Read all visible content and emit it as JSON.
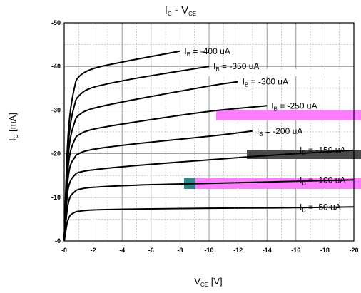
{
  "chart_data": {
    "type": "line",
    "title": {
      "main": "I",
      "sub1": "C",
      "mid": " - V",
      "sub2": "CE"
    },
    "xlabel": {
      "main": "V",
      "sub": "CE",
      "rest": " [V]"
    },
    "ylabel": {
      "main": "I",
      "sub": "C",
      "rest": " [mA]"
    },
    "x_ticks": [
      "-0",
      "-2",
      "-4",
      "-6",
      "-8",
      "-10",
      "-12",
      "-14",
      "-16",
      "-18",
      "-20"
    ],
    "y_ticks": [
      "-0",
      "-10",
      "-20",
      "-30",
      "-40",
      "-50"
    ],
    "xlim": [
      0,
      -20
    ],
    "ylim": [
      0,
      -50
    ],
    "grid": true,
    "series": [
      {
        "label_main": "I",
        "label_sub": "B",
        "label_rest": " = -50 uA",
        "x": [
          0,
          -0.2,
          -0.4,
          -0.7,
          -1,
          -2,
          -5,
          -10,
          -15,
          -20
        ],
        "y": [
          0,
          -4,
          -5.8,
          -6.5,
          -6.8,
          -7.1,
          -7.3,
          -7.5,
          -7.6,
          -7.8
        ]
      },
      {
        "label_main": "I",
        "label_sub": "B",
        "label_rest": " = -100 uA",
        "x": [
          0,
          -0.2,
          -0.4,
          -0.7,
          -1,
          -2,
          -5,
          -10,
          -15,
          -20
        ],
        "y": [
          0,
          -7,
          -10,
          -11.2,
          -11.8,
          -12.3,
          -12.8,
          -13.2,
          -13.6,
          -14
        ]
      },
      {
        "label_main": "I",
        "label_sub": "B",
        "label_rest": " = -150 uA",
        "x": [
          0,
          -0.2,
          -0.4,
          -0.7,
          -1,
          -2,
          -5,
          -10,
          -15,
          -20
        ],
        "y": [
          0,
          -10,
          -13.5,
          -15,
          -15.7,
          -16.3,
          -17.3,
          -18.6,
          -19.8,
          -20.8
        ]
      },
      {
        "label_main": "I",
        "label_sub": "B",
        "label_rest": " = -200 uA",
        "x": [
          0,
          -0.2,
          -0.4,
          -0.7,
          -1,
          -2,
          -5,
          -10,
          -13
        ],
        "y": [
          0,
          -12,
          -17,
          -19,
          -20,
          -21,
          -22.3,
          -24,
          -25.2
        ]
      },
      {
        "label_main": "I",
        "label_sub": "B",
        "label_rest": " = -250 uA",
        "x": [
          0,
          -0.2,
          -0.4,
          -0.7,
          -1,
          -2,
          -5,
          -10,
          -14
        ],
        "y": [
          0,
          -14,
          -20,
          -23,
          -24.3,
          -25.6,
          -27.3,
          -29.7,
          -31
        ]
      },
      {
        "label_main": "I",
        "label_sub": "B",
        "label_rest": " = -300 uA",
        "x": [
          0,
          -0.2,
          -0.4,
          -0.7,
          -1,
          -2,
          -5,
          -10,
          -12
        ],
        "y": [
          0,
          -16,
          -23,
          -27,
          -28.8,
          -30.4,
          -32.5,
          -35.5,
          -36.5
        ]
      },
      {
        "label_main": "I",
        "label_sub": "B",
        "label_rest": " = -350 uA",
        "x": [
          0,
          -0.2,
          -0.4,
          -0.7,
          -1,
          -2,
          -5,
          -10
        ],
        "y": [
          0,
          -18,
          -26,
          -31,
          -33.2,
          -35.2,
          -37.3,
          -40
        ]
      },
      {
        "label_main": "I",
        "label_sub": "B",
        "label_rest": " = -400 uA",
        "x": [
          0,
          -0.2,
          -0.4,
          -0.7,
          -1,
          -2,
          -4,
          -8
        ],
        "y": [
          0,
          -20,
          -29,
          -35,
          -37.6,
          -39.5,
          -41,
          -43.5
        ]
      }
    ],
    "colors": {
      "curve": "#000000",
      "grid": "#808080",
      "magenta": "#ff7bff",
      "dark_gray": "#4a4a4a",
      "teal": "#2a8a8a",
      "background": "#ffffff"
    }
  }
}
